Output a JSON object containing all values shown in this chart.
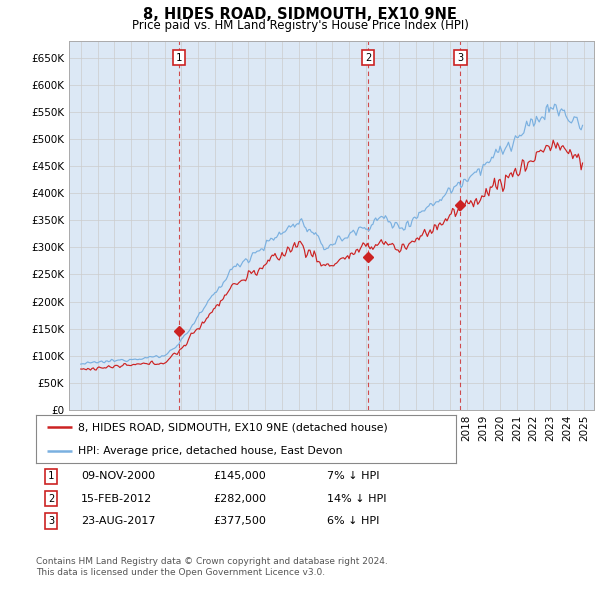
{
  "title": "8, HIDES ROAD, SIDMOUTH, EX10 9NE",
  "subtitle": "Price paid vs. HM Land Registry's House Price Index (HPI)",
  "legend_line1": "8, HIDES ROAD, SIDMOUTH, EX10 9NE (detached house)",
  "legend_line2": "HPI: Average price, detached house, East Devon",
  "footer1": "Contains HM Land Registry data © Crown copyright and database right 2024.",
  "footer2": "This data is licensed under the Open Government Licence v3.0.",
  "transactions": [
    {
      "num": 1,
      "date": "09-NOV-2000",
      "price": "£145,000",
      "pct": "7% ↓ HPI",
      "year": 2000.87,
      "price_val": 145000
    },
    {
      "num": 2,
      "date": "15-FEB-2012",
      "price": "£282,000",
      "pct": "14% ↓ HPI",
      "year": 2012.12,
      "price_val": 282000
    },
    {
      "num": 3,
      "date": "23-AUG-2017",
      "price": "£377,500",
      "pct": "6% ↓ HPI",
      "year": 2017.64,
      "price_val": 377500
    }
  ],
  "ylim": [
    0,
    680000
  ],
  "yticks": [
    0,
    50000,
    100000,
    150000,
    200000,
    250000,
    300000,
    350000,
    400000,
    450000,
    500000,
    550000,
    600000,
    650000
  ],
  "ytick_labels": [
    "£0",
    "£50K",
    "£100K",
    "£150K",
    "£200K",
    "£250K",
    "£300K",
    "£350K",
    "£400K",
    "£450K",
    "£500K",
    "£550K",
    "£600K",
    "£650K"
  ],
  "hpi_color": "#7ab0e0",
  "price_color": "#cc2222",
  "vline_color": "#cc2222",
  "grid_color": "#cccccc",
  "bg_color": "#ffffff",
  "plot_bg_color": "#dce8f5"
}
